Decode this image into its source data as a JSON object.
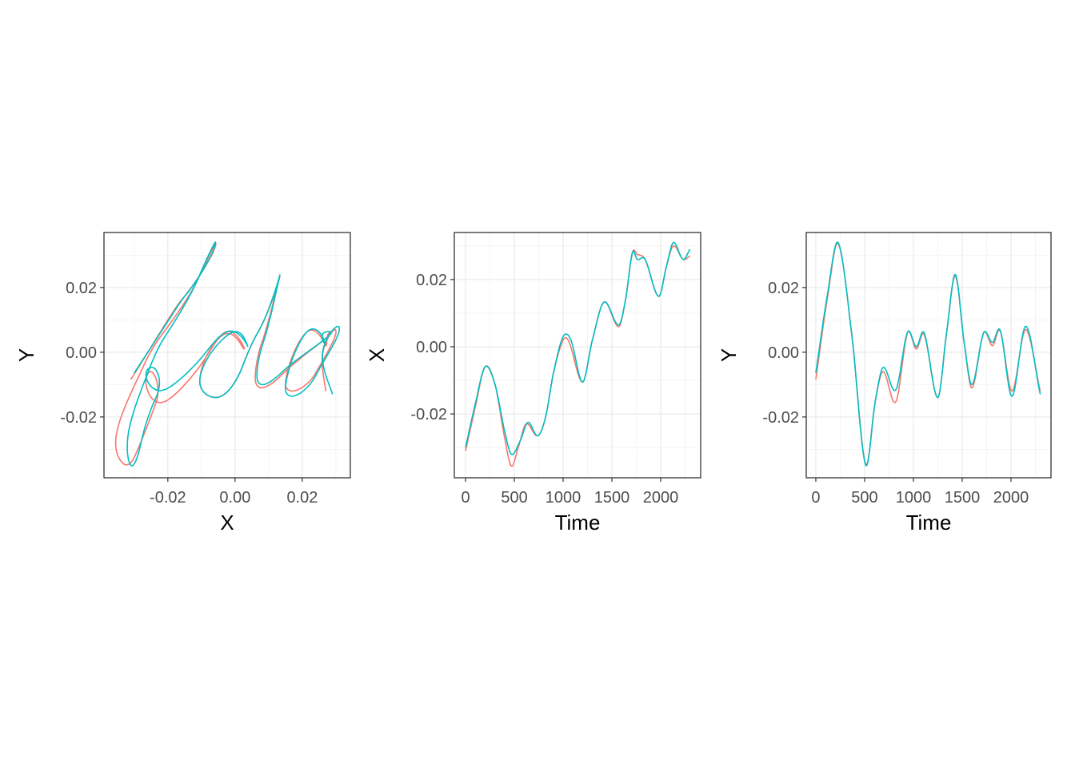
{
  "chart_data": [
    {
      "type": "line",
      "xlabel": "X",
      "ylabel": "Y",
      "xlim": [
        -0.039,
        0.0343
      ],
      "ylim": [
        -0.0388,
        0.037
      ],
      "xticks": [
        -0.02,
        0.0,
        0.02
      ],
      "xtick_labels": [
        "-0.02",
        "0.00",
        "0.02"
      ],
      "yticks": [
        -0.02,
        0.0,
        0.02
      ],
      "ytick_labels": [
        "-0.02",
        "0.00",
        "0.02"
      ],
      "grid": true,
      "legend": "none",
      "note_series": "path of (X, Y) from the two series below"
    },
    {
      "type": "line",
      "xlabel": "Time",
      "ylabel": "X",
      "xlim": [
        -115,
        2410
      ],
      "ylim": [
        -0.039,
        0.034
      ],
      "xticks": [
        0,
        500,
        1000,
        1500,
        2000
      ],
      "xtick_labels": [
        "0",
        "500",
        "1000",
        "1500",
        "2000"
      ],
      "yticks": [
        -0.02,
        0.0,
        0.02
      ],
      "ytick_labels": [
        "-0.02",
        "0.00",
        "0.02"
      ],
      "grid": true,
      "legend": "none"
    },
    {
      "type": "line",
      "xlabel": "Time",
      "ylabel": "Y",
      "xlim": [
        -98,
        2410
      ],
      "ylim": [
        -0.0388,
        0.037
      ],
      "xticks": [
        0,
        500,
        1000,
        1500,
        2000
      ],
      "xtick_labels": [
        "0",
        "500",
        "1000",
        "1500",
        "2000"
      ],
      "yticks": [
        -0.02,
        0.0,
        0.02
      ],
      "ytick_labels": [
        "-0.02",
        "0.00",
        "0.02"
      ],
      "grid": true,
      "legend": "none"
    }
  ],
  "series": [
    {
      "color": "#F8766D",
      "X": [
        [
          0,
          -0.031
        ],
        [
          100,
          -0.018
        ],
        [
          200,
          -0.006
        ],
        [
          300,
          -0.011
        ],
        [
          400,
          -0.027
        ],
        [
          470,
          -0.0355
        ],
        [
          540,
          -0.03
        ],
        [
          620,
          -0.023
        ],
        [
          740,
          -0.0265
        ],
        [
          820,
          -0.021
        ],
        [
          900,
          -0.008
        ],
        [
          1000,
          0.002
        ],
        [
          1060,
          0.0015
        ],
        [
          1200,
          -0.0105
        ],
        [
          1300,
          0.002
        ],
        [
          1420,
          0.0133
        ],
        [
          1570,
          0.006
        ],
        [
          1640,
          0.014
        ],
        [
          1710,
          0.028
        ],
        [
          1760,
          0.0275
        ],
        [
          1840,
          0.026
        ],
        [
          1980,
          0.015
        ],
        [
          2060,
          0.024
        ],
        [
          2130,
          0.03
        ],
        [
          2230,
          0.026
        ],
        [
          2300,
          0.027
        ]
      ],
      "Y": [
        [
          0,
          -0.0084
        ],
        [
          120,
          0.017
        ],
        [
          230,
          0.0335
        ],
        [
          370,
          0.005
        ],
        [
          510,
          -0.0345
        ],
        [
          610,
          -0.015
        ],
        [
          690,
          -0.006
        ],
        [
          820,
          -0.0153
        ],
        [
          940,
          0.006
        ],
        [
          1030,
          0.001
        ],
        [
          1110,
          0.0055
        ],
        [
          1250,
          -0.014
        ],
        [
          1340,
          0.006
        ],
        [
          1430,
          0.0235
        ],
        [
          1520,
          0.003
        ],
        [
          1600,
          -0.011
        ],
        [
          1720,
          0.006
        ],
        [
          1810,
          0.002
        ],
        [
          1890,
          0.0065
        ],
        [
          2010,
          -0.012
        ],
        [
          2150,
          0.007
        ],
        [
          2300,
          -0.012
        ]
      ]
    },
    {
      "color": "#00BFC4",
      "X": [
        [
          0,
          -0.03
        ],
        [
          100,
          -0.017
        ],
        [
          200,
          -0.006
        ],
        [
          300,
          -0.011
        ],
        [
          400,
          -0.025
        ],
        [
          470,
          -0.032
        ],
        [
          560,
          -0.028
        ],
        [
          640,
          -0.0225
        ],
        [
          740,
          -0.0265
        ],
        [
          820,
          -0.021
        ],
        [
          900,
          -0.008
        ],
        [
          1000,
          0.003
        ],
        [
          1080,
          0.002
        ],
        [
          1200,
          -0.0105
        ],
        [
          1300,
          0.002
        ],
        [
          1420,
          0.0133
        ],
        [
          1570,
          0.0065
        ],
        [
          1640,
          0.014
        ],
        [
          1710,
          0.028
        ],
        [
          1760,
          0.026
        ],
        [
          1840,
          0.026
        ],
        [
          1980,
          0.015
        ],
        [
          2060,
          0.024
        ],
        [
          2130,
          0.031
        ],
        [
          2230,
          0.026
        ],
        [
          2300,
          0.029
        ]
      ],
      "Y": [
        [
          0,
          -0.0064
        ],
        [
          120,
          0.018
        ],
        [
          230,
          0.0338
        ],
        [
          370,
          0.005
        ],
        [
          510,
          -0.0348
        ],
        [
          610,
          -0.015
        ],
        [
          690,
          -0.0047
        ],
        [
          820,
          -0.0116
        ],
        [
          940,
          0.0062
        ],
        [
          1030,
          0.0017
        ],
        [
          1110,
          0.006
        ],
        [
          1250,
          -0.014
        ],
        [
          1340,
          0.006
        ],
        [
          1430,
          0.024
        ],
        [
          1520,
          0.003
        ],
        [
          1600,
          -0.01
        ],
        [
          1720,
          0.006
        ],
        [
          1810,
          0.003
        ],
        [
          1890,
          0.0067
        ],
        [
          2010,
          -0.0136
        ],
        [
          2150,
          0.008
        ],
        [
          2300,
          -0.013
        ]
      ]
    }
  ]
}
